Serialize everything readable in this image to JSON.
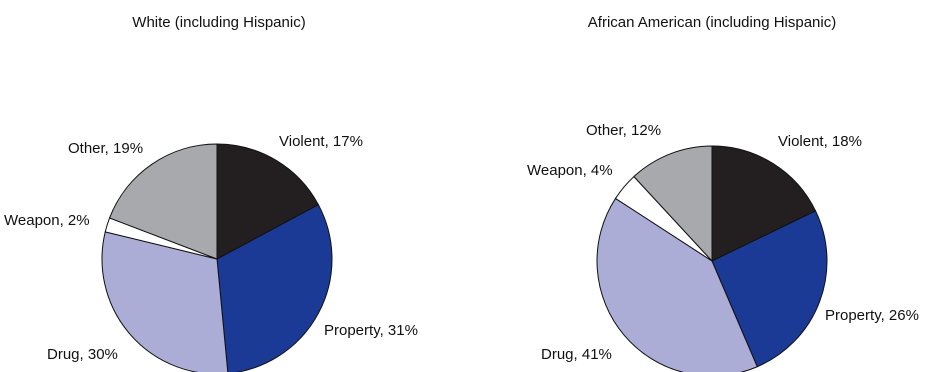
{
  "chart_data": [
    {
      "type": "pie",
      "title": "White (including Hispanic)",
      "slices": [
        {
          "label": "Violent",
          "value": 17,
          "text": "Violent, 17%",
          "color": "#231f20"
        },
        {
          "label": "Property",
          "value": 31,
          "text": "Property, 31%",
          "color": "#1b3a96"
        },
        {
          "label": "Drug",
          "value": 30,
          "text": "Drug, 30%",
          "color": "#abadd6"
        },
        {
          "label": "Weapon",
          "value": 2,
          "text": "Weapon, 2%",
          "color": "#ffffff"
        },
        {
          "label": "Other",
          "value": 19,
          "text": "Other, 19%",
          "color": "#a7a9ac"
        }
      ]
    },
    {
      "type": "pie",
      "title": "African American (including Hispanic)",
      "slices": [
        {
          "label": "Violent",
          "value": 18,
          "text": "Violent, 18%",
          "color": "#231f20"
        },
        {
          "label": "Property",
          "value": 26,
          "text": "Property, 26%",
          "color": "#1b3a96"
        },
        {
          "label": "Drug",
          "value": 41,
          "text": "Drug, 41%",
          "color": "#abadd6"
        },
        {
          "label": "Weapon",
          "value": 4,
          "text": "Weapon, 4%",
          "color": "#ffffff"
        },
        {
          "label": "Other",
          "value": 12,
          "text": "Other, 12%",
          "color": "#a7a9ac"
        }
      ]
    }
  ]
}
